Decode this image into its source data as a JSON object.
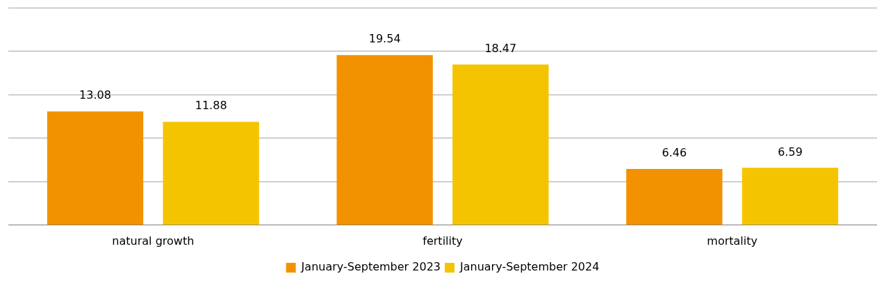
{
  "chart_data": {
    "type": "bar",
    "categories": [
      "natural growth",
      "fertility",
      "mortality"
    ],
    "series": [
      {
        "name": "January-September 2023",
        "color": "#f39200",
        "values": [
          13.08,
          19.54,
          6.46
        ]
      },
      {
        "name": "January-September 2024",
        "color": "#f5c400",
        "values": [
          11.88,
          18.47,
          6.59
        ]
      }
    ],
    "ylim": [
      0,
      25
    ],
    "yticks": [
      {
        "value": 0,
        "label": null
      },
      {
        "value": 5,
        "label": null
      },
      {
        "value": 10,
        "label": null
      },
      {
        "value": 15,
        "label": null
      },
      {
        "value": 20,
        "label": null
      },
      {
        "value": 25,
        "label": null
      }
    ],
    "tick_labels": "x",
    "grid": "y",
    "legend": "bottom",
    "data_labels": true
  }
}
